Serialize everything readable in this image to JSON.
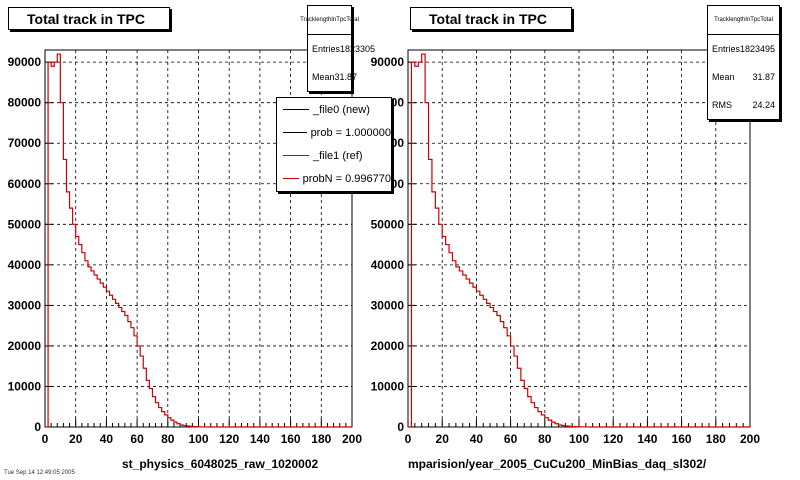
{
  "panels": [
    {
      "title": "Total track in TPC",
      "stats": {
        "name": "TracklengthInTpcTotal",
        "entries_label": "Entries",
        "entries": "1823305",
        "mean_label": "Mean",
        "mean": "31.87"
      },
      "legend": [
        {
          "label": "_file0 (new)",
          "color": "#000000"
        },
        {
          "label": "prob = 1.000000",
          "color": "#000000"
        },
        {
          "label": "_file1 (ref)",
          "color": "#cc0000"
        },
        {
          "label": "probN = 0.996770",
          "color": "#cc0000"
        }
      ],
      "xtitle": "st_physics_6048025_raw_1020002"
    },
    {
      "title": "Total track in TPC",
      "stats": {
        "name": "TracklengthInTpcTotal",
        "entries_label": "Entries",
        "entries": "1823495",
        "mean_label": "Mean",
        "mean": "31.87",
        "rms_label": "RMS",
        "rms": "24.24"
      },
      "xtitle": "mparision/year_2005_CuCu200_MinBias_daq_sl302/"
    }
  ],
  "footer_stamp": "Tue Sep 14 12:49:05 2005",
  "colors": {
    "series": "#cc0000",
    "grid": "#000000"
  },
  "chart_data": [
    {
      "type": "histogram",
      "title": "Total track in TPC",
      "xlabel": "st_physics_6048025_raw_1020002",
      "xlim": [
        0,
        200
      ],
      "ylim": [
        0,
        93000
      ],
      "grid": true,
      "xticks": [
        0,
        20,
        40,
        60,
        80,
        100,
        120,
        140,
        160,
        180,
        200
      ],
      "yticks": [
        0,
        10000,
        20000,
        30000,
        40000,
        50000,
        60000,
        70000,
        80000,
        90000
      ],
      "ytick_labels": [
        "0",
        "10000",
        "20000",
        "30000",
        "40000",
        "50000",
        "60000",
        "70000",
        "80000",
        "90000"
      ],
      "bin_width": 2,
      "series": [
        {
          "name": "_file1 (ref)",
          "color": "#cc0000",
          "values": [
            0,
            90000,
            89000,
            90000,
            92000,
            80000,
            66000,
            58000,
            54000,
            50000,
            47000,
            45000,
            43000,
            41000,
            39500,
            38500,
            37500,
            36500,
            35500,
            34500,
            33500,
            32500,
            31500,
            30500,
            29500,
            28500,
            27500,
            26000,
            24500,
            22500,
            20000,
            17500,
            14500,
            11500,
            9500,
            7500,
            6000,
            4800,
            3800,
            3000,
            2300,
            1700,
            1200,
            800,
            500,
            350,
            250,
            150,
            100,
            60,
            40,
            20,
            10,
            5,
            3,
            2,
            0,
            0,
            0,
            0,
            0,
            0,
            0,
            0,
            0,
            0,
            0,
            0,
            0,
            0,
            0,
            0,
            0,
            0,
            0,
            0,
            0,
            0,
            0,
            0,
            0,
            0,
            0,
            0,
            0,
            0,
            0,
            0,
            0,
            0,
            0,
            0,
            0,
            0,
            0,
            0,
            0,
            0,
            0,
            0
          ]
        }
      ]
    },
    {
      "type": "histogram",
      "title": "Total track in TPC",
      "xlabel": "mparision/year_2005_CuCu200_MinBias_daq_sl302/",
      "xlim": [
        0,
        200
      ],
      "ylim": [
        0,
        93000
      ],
      "grid": true,
      "xticks": [
        0,
        20,
        40,
        60,
        80,
        100,
        120,
        140,
        160,
        180,
        200
      ],
      "yticks": [
        0,
        10000,
        20000,
        30000,
        40000,
        50000,
        60000,
        70000,
        80000,
        90000
      ],
      "ytick_labels": [
        "0",
        "10000",
        "20000",
        "30000",
        "40000",
        "50000",
        "60000",
        "70000",
        "80000",
        "90000"
      ],
      "bin_width": 2,
      "series": [
        {
          "name": "",
          "color": "#cc0000",
          "values": [
            0,
            90000,
            89000,
            90000,
            92000,
            80000,
            66000,
            58000,
            54000,
            50000,
            47000,
            45000,
            43000,
            41000,
            39500,
            38500,
            37500,
            36500,
            35500,
            34500,
            33500,
            32500,
            31500,
            30500,
            29500,
            28500,
            27500,
            26000,
            24500,
            22500,
            20000,
            17500,
            14500,
            11500,
            9500,
            7500,
            6000,
            4800,
            3800,
            3000,
            2300,
            1700,
            1200,
            800,
            500,
            350,
            250,
            150,
            100,
            60,
            40,
            20,
            10,
            5,
            3,
            2,
            0,
            0,
            0,
            0,
            0,
            0,
            0,
            0,
            0,
            0,
            0,
            0,
            0,
            0,
            0,
            0,
            0,
            0,
            0,
            0,
            0,
            0,
            0,
            0,
            0,
            0,
            0,
            0,
            0,
            0,
            0,
            0,
            0,
            0,
            0,
            0,
            0,
            0,
            0,
            0,
            0,
            0,
            0,
            0
          ]
        }
      ]
    }
  ]
}
